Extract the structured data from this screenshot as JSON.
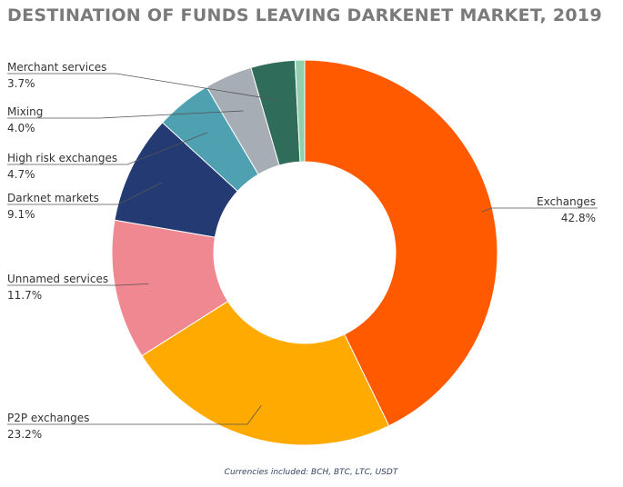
{
  "chart_data": {
    "type": "pie",
    "title": "DESTINATION OF FUNDS LEAVING DARKENET MARKET, 2019",
    "footnote": "Currencies included: BCH, BTC, LTC, USDT",
    "slices": [
      {
        "label": "Exchanges",
        "value": 42.8,
        "value_label": "42.8%",
        "color": "#ff5a00"
      },
      {
        "label": "P2P exchanges",
        "value": 23.2,
        "value_label": "23.2%",
        "color": "#ffaa00"
      },
      {
        "label": "Unnamed services",
        "value": 11.7,
        "value_label": "11.7%",
        "color": "#ef8890"
      },
      {
        "label": "Darknet markets",
        "value": 9.1,
        "value_label": "9.1%",
        "color": "#243a73"
      },
      {
        "label": "High risk exchanges",
        "value": 4.7,
        "value_label": "4.7%",
        "color": "#4fa0b0"
      },
      {
        "label": "Mixing",
        "value": 4.0,
        "value_label": "4.0%",
        "color": "#a6adb4"
      },
      {
        "label": "Merchant services",
        "value": 3.7,
        "value_label": "3.7%",
        "color": "#2f6d5a"
      },
      {
        "label": "",
        "value": 0.8,
        "value_label": "",
        "color": "#8fd0b0"
      }
    ]
  }
}
